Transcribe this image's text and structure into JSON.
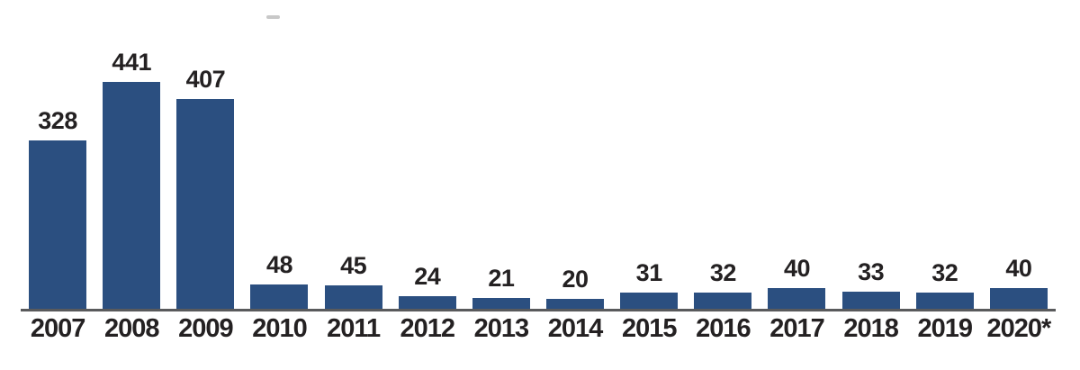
{
  "chart_data": {
    "type": "bar",
    "categories": [
      "2007",
      "2008",
      "2009",
      "2010",
      "2011",
      "2012",
      "2013",
      "2014",
      "2015",
      "2016",
      "2017",
      "2018",
      "2019",
      "2020*"
    ],
    "values": [
      328,
      441,
      407,
      48,
      45,
      24,
      21,
      20,
      31,
      32,
      40,
      33,
      32,
      40
    ],
    "title": "",
    "xlabel": "",
    "ylabel": "",
    "ylim": [
      0,
      460
    ],
    "grid": false,
    "legend": false,
    "value_labels": "above-bars",
    "colors": {
      "bar": "#2b4f80",
      "axis_line": "#595a5c",
      "label_text": "#242122",
      "background": "#ffffff",
      "smudge_mark": "#9a9a9a"
    }
  }
}
